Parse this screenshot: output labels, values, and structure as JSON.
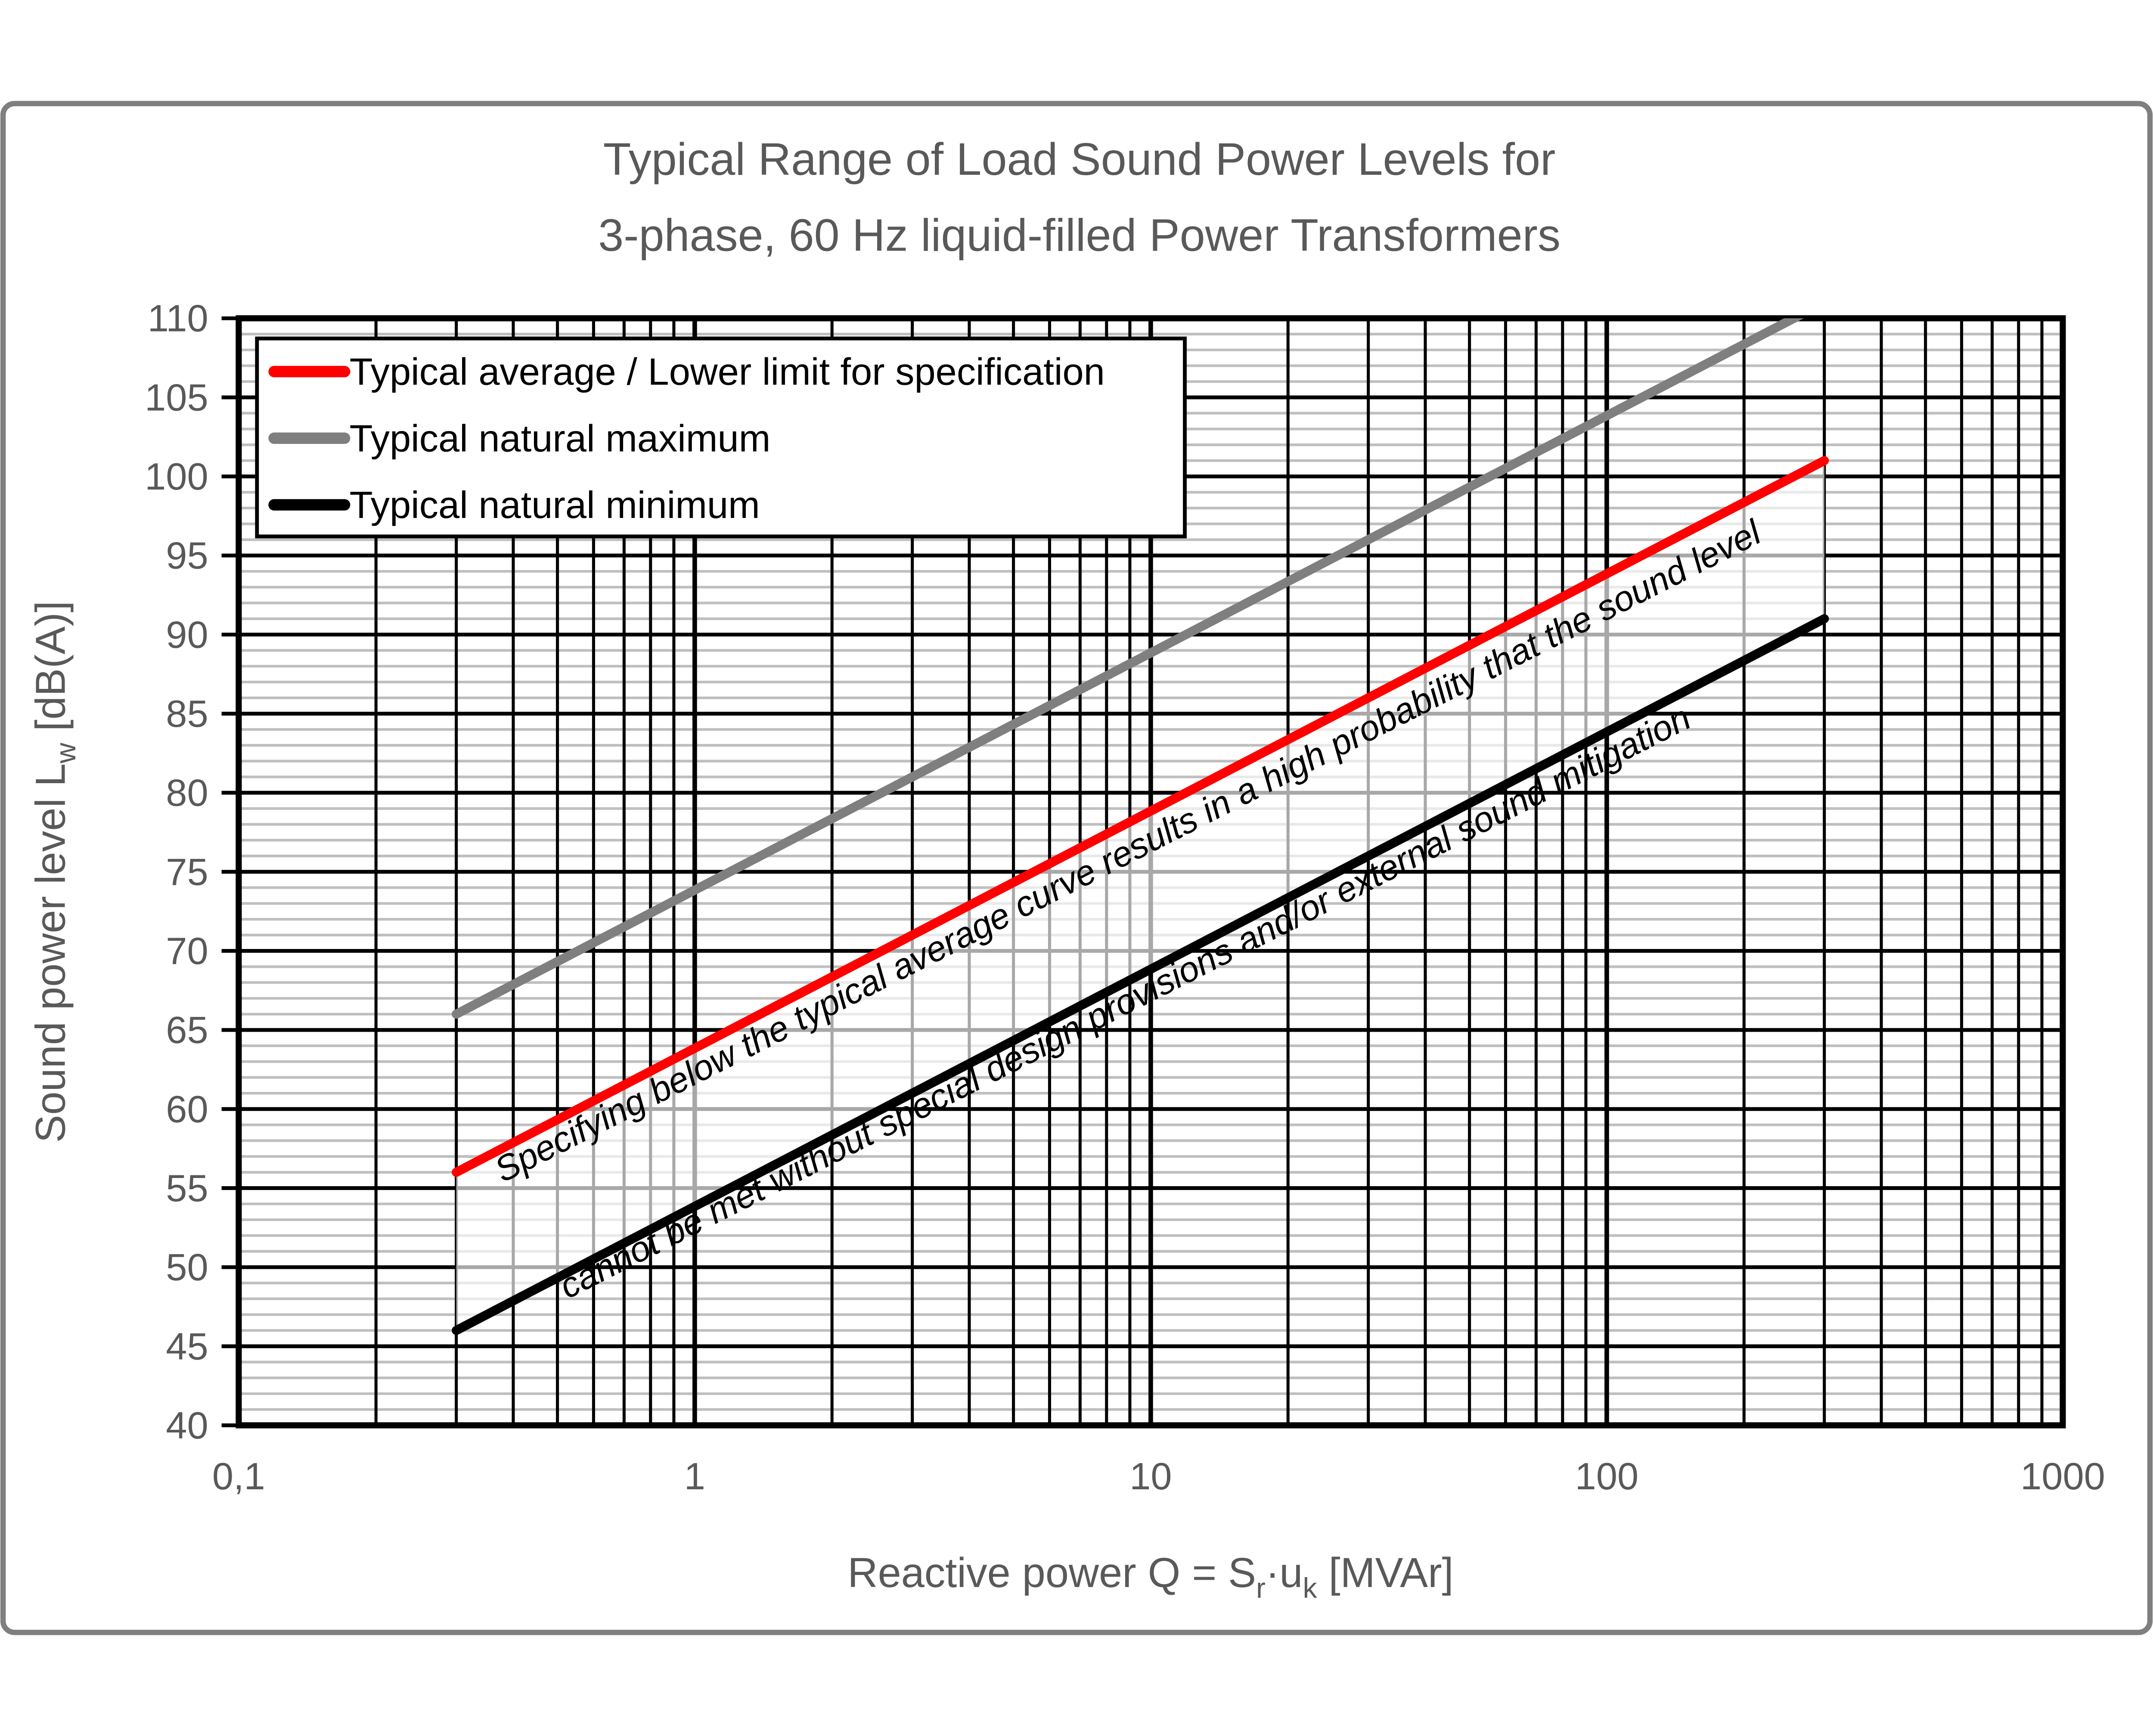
{
  "chart_data": {
    "type": "line",
    "title": [
      "Typical Range of Load Sound Power Levels for",
      "3-phase, 60 Hz liquid-filled Power Transformers"
    ],
    "x_axis": {
      "scale": "log",
      "min": 0.1,
      "max": 1000,
      "ticks": [
        {
          "value": 0.1,
          "label": "0,1"
        },
        {
          "value": 1,
          "label": "1"
        },
        {
          "value": 10,
          "label": "10"
        },
        {
          "value": 100,
          "label": "100"
        },
        {
          "value": 1000,
          "label": "1000"
        }
      ],
      "minor_multipliers": [
        2,
        3,
        4,
        5,
        6,
        7,
        8,
        9
      ],
      "label_plain": "Reactive power Q = Sr·uk [MVAr]",
      "label_parts": [
        {
          "t": "Reactive power Q = S"
        },
        {
          "t": "r",
          "sub": true
        },
        {
          "t": "·u"
        },
        {
          "t": "k",
          "sub": true
        },
        {
          "t": " [MVAr]"
        }
      ]
    },
    "y_axis": {
      "min": 40,
      "max": 110,
      "major_step": 5,
      "minor_step": 1,
      "label_plain": "Sound power level Lw [dB(A)]",
      "label_parts": [
        {
          "t": "Sound power level L"
        },
        {
          "t": "w",
          "sub": true
        },
        {
          "t": " [dB(A)]"
        }
      ]
    },
    "series": [
      {
        "name": "Typical average / Lower limit for specification",
        "color": "#FF0000",
        "points": [
          [
            0.3,
            56
          ],
          [
            300,
            101
          ]
        ]
      },
      {
        "name": "Typical natural maximum",
        "color": "#7F7F7F",
        "points": [
          [
            0.3,
            66
          ],
          [
            300,
            111
          ]
        ],
        "clipped_at_y": 110
      },
      {
        "name": "Typical natural minimum",
        "color": "#000000",
        "points": [
          [
            0.3,
            46
          ],
          [
            300,
            91
          ]
        ]
      }
    ],
    "slope_dB_per_decade": 15,
    "band": {
      "top_series": 0,
      "bottom_series": 2,
      "fill": "#FFFFFF",
      "opacity": 0.66
    },
    "annotation": {
      "lines": [
        "Specifying below the typical average curve results in a high probability that the sound level",
        "cannot be met without special design provisions and/or external sound mitigation"
      ],
      "rotation_deg": -27,
      "style": "italic"
    },
    "legend": {
      "position": "top-left",
      "entries": [
        "Typical average / Lower limit for specification",
        "Typical natural maximum",
        "Typical natural minimum"
      ]
    },
    "grid": {
      "major_color": "#000000",
      "minor_h_color": "#BFBFBF",
      "minor_v_color": "#000000"
    },
    "colors": {
      "axis_text": "#595959",
      "outer_frame": "#7F7F7F",
      "background": "#FFFFFF"
    }
  }
}
